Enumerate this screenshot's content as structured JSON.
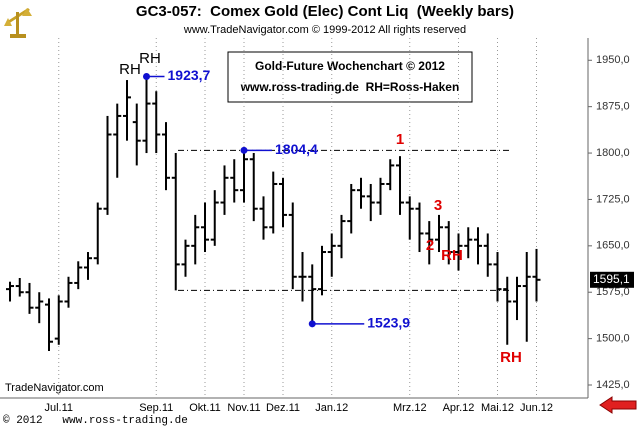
{
  "chart_data": {
    "type": "ohlc",
    "title": "GC3-057:  Comex Gold (Elec) Cont Liq  (Weekly bars)",
    "subtitle": "www.TradeNavigator.com © 1999-2012 All rights reserved",
    "box_lines": [
      "Gold-Future Wochenchart © 2012",
      "www.ross-trading.de  RH=Ross-Haken"
    ],
    "source": "TradeNavigator.com",
    "footer": "© 2012   www.ross-trading.de",
    "categories": [
      null,
      null,
      null,
      null,
      null,
      "Jul.11",
      null,
      null,
      null,
      null,
      null,
      null,
      null,
      null,
      null,
      "Sep.11",
      null,
      null,
      null,
      null,
      "Okt.11",
      null,
      null,
      null,
      "Nov.11",
      null,
      null,
      null,
      "Dez.11",
      null,
      null,
      null,
      null,
      "Jan.12",
      null,
      null,
      null,
      null,
      null,
      null,
      null,
      "Mrz.12",
      null,
      null,
      null,
      null,
      "Apr.12",
      null,
      null,
      null,
      "Mai.12",
      null,
      null,
      null,
      "Jun.12"
    ],
    "open": [
      1580,
      1585,
      1575,
      1550,
      1555,
      1500,
      1560,
      1590,
      1615,
      1630,
      1710,
      1830,
      1860,
      1850,
      1820,
      1880,
      1830,
      1760,
      1620,
      1650,
      1680,
      1660,
      1720,
      1760,
      1740,
      1790,
      1710,
      1680,
      1750,
      1700,
      1600,
      1600,
      1580,
      1640,
      1650,
      1690,
      1740,
      1730,
      1720,
      1750,
      1780,
      1720,
      1710,
      1670,
      1660,
      1680,
      1640,
      1650,
      1660,
      1650,
      1620,
      1580,
      1560,
      1585,
      1600
    ],
    "high": [
      1592,
      1598,
      1590,
      1575,
      1565,
      1570,
      1600,
      1625,
      1640,
      1720,
      1860,
      1880,
      1918,
      1880,
      1923.7,
      1900,
      1850,
      1800,
      1660,
      1700,
      1720,
      1740,
      1780,
      1790,
      1804.4,
      1800,
      1730,
      1770,
      1760,
      1720,
      1640,
      1620,
      1650,
      1670,
      1700,
      1750,
      1760,
      1750,
      1760,
      1790,
      1795,
      1730,
      1720,
      1690,
      1700,
      1690,
      1670,
      1680,
      1680,
      1670,
      1640,
      1600,
      1600,
      1640,
      1645
    ],
    "low": [
      1560,
      1568,
      1540,
      1525,
      1480,
      1490,
      1550,
      1580,
      1595,
      1620,
      1700,
      1760,
      1820,
      1780,
      1800,
      1800,
      1740,
      1578,
      1600,
      1620,
      1640,
      1650,
      1700,
      1720,
      1720,
      1690,
      1660,
      1670,
      1680,
      1580,
      1560,
      1523.9,
      1570,
      1600,
      1630,
      1670,
      1710,
      1690,
      1700,
      1740,
      1700,
      1660,
      1640,
      1620,
      1640,
      1620,
      1610,
      1630,
      1620,
      1600,
      1560,
      1490,
      1530,
      1495,
      1560
    ],
    "close": [
      1585,
      1575,
      1550,
      1560,
      1495,
      1560,
      1590,
      1615,
      1630,
      1710,
      1830,
      1860,
      1890,
      1820,
      1880,
      1830,
      1760,
      1620,
      1650,
      1680,
      1660,
      1720,
      1760,
      1740,
      1790,
      1710,
      1680,
      1750,
      1700,
      1600,
      1600,
      1580,
      1640,
      1650,
      1690,
      1740,
      1730,
      1720,
      1750,
      1780,
      1720,
      1710,
      1670,
      1660,
      1680,
      1640,
      1650,
      1660,
      1650,
      1620,
      1580,
      1560,
      1585,
      1600,
      1595.1
    ],
    "color": "#000000",
    "ylim": [
      1404,
      1986
    ],
    "yticks": [
      {
        "value": 1425,
        "label": "1425,0"
      },
      {
        "value": 1500,
        "label": "1500,0"
      },
      {
        "value": 1575,
        "label": "1575,0"
      },
      {
        "value": 1650,
        "label": "1650,0"
      },
      {
        "value": 1725,
        "label": "1725,0"
      },
      {
        "value": 1800,
        "label": "1800,0"
      },
      {
        "value": 1875,
        "label": "1875,0"
      },
      {
        "value": 1950,
        "label": "1950,0"
      }
    ],
    "grid": true,
    "last_label": "1595,1",
    "price_labels": [
      {
        "value": 1923.7,
        "label": "1923,7"
      },
      {
        "value": 1804.4,
        "label": "1804,4"
      },
      {
        "value": 1523.9,
        "label": "1523,9"
      }
    ],
    "reference_lines": [
      1804.4,
      1578
    ],
    "annotations": [
      "RH",
      "RH",
      "1",
      "3",
      "2",
      "RH",
      "RH"
    ]
  }
}
